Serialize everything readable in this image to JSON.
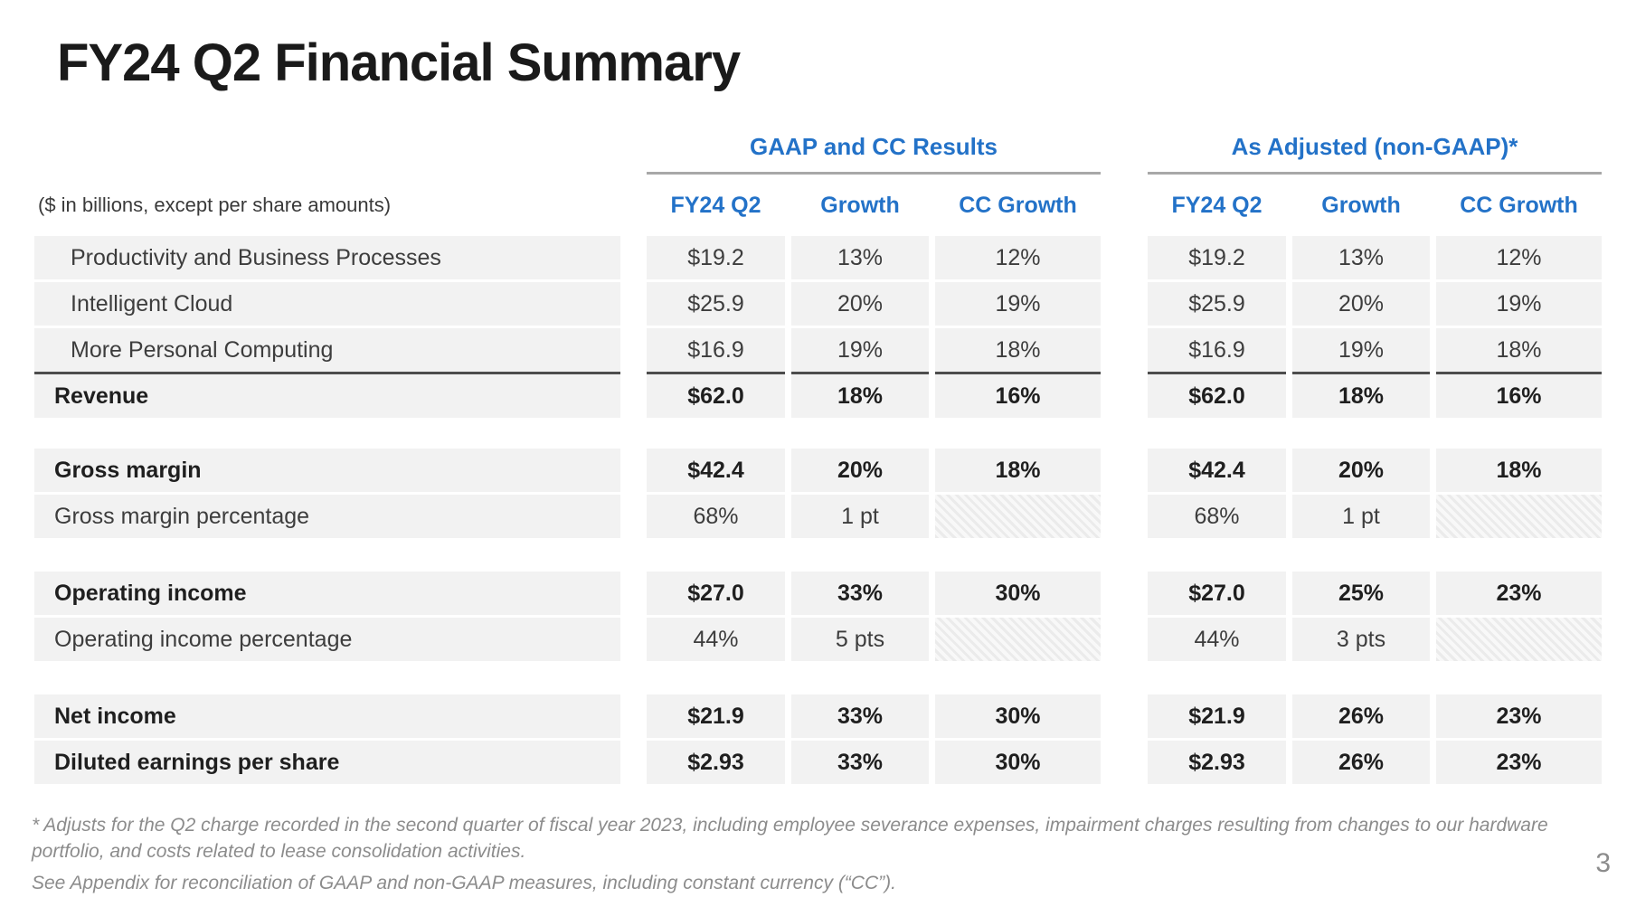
{
  "page_title": "FY24 Q2 Financial Summary",
  "units_note": "($ in billions, except per share amounts)",
  "table": {
    "sections": [
      {
        "title": "GAAP and CC Results",
        "columns": [
          "FY24 Q2",
          "Growth",
          "CC Growth"
        ]
      },
      {
        "title": "As Adjusted (non-GAAP)*",
        "columns": [
          "FY24 Q2",
          "Growth",
          "CC Growth"
        ]
      }
    ],
    "rows": [
      {
        "label": "Productivity and Business Processes",
        "indent": true,
        "bold": false,
        "gaap": [
          "$19.2",
          "13%",
          "12%"
        ],
        "non_gaap": [
          "$19.2",
          "13%",
          "12%"
        ]
      },
      {
        "label": "Intelligent Cloud",
        "indent": true,
        "bold": false,
        "gaap": [
          "$25.9",
          "20%",
          "19%"
        ],
        "non_gaap": [
          "$25.9",
          "20%",
          "19%"
        ]
      },
      {
        "label": "More Personal Computing",
        "indent": true,
        "bold": false,
        "gaap": [
          "$16.9",
          "19%",
          "18%"
        ],
        "non_gaap": [
          "$16.9",
          "19%",
          "18%"
        ]
      },
      {
        "label": "Revenue",
        "bold": true,
        "top_border": true,
        "gaap": [
          "$62.0",
          "18%",
          "16%"
        ],
        "non_gaap": [
          "$62.0",
          "18%",
          "16%"
        ]
      },
      {
        "spacer": true
      },
      {
        "label": "Gross margin",
        "bold": true,
        "gaap": [
          "$42.4",
          "20%",
          "18%"
        ],
        "non_gaap": [
          "$42.4",
          "20%",
          "18%"
        ]
      },
      {
        "label": "Gross margin percentage",
        "bold": false,
        "gaap": [
          "68%",
          "1 pt",
          null
        ],
        "non_gaap": [
          "68%",
          "1 pt",
          null
        ]
      },
      {
        "spacer": true
      },
      {
        "label": "Operating income",
        "bold": true,
        "gaap": [
          "$27.0",
          "33%",
          "30%"
        ],
        "non_gaap": [
          "$27.0",
          "25%",
          "23%"
        ]
      },
      {
        "label": "Operating income percentage",
        "bold": false,
        "gaap": [
          "44%",
          "5 pts",
          null
        ],
        "non_gaap": [
          "44%",
          "3 pts",
          null
        ]
      },
      {
        "spacer": true
      },
      {
        "label": "Net income",
        "bold": true,
        "gaap": [
          "$21.9",
          "33%",
          "30%"
        ],
        "non_gaap": [
          "$21.9",
          "26%",
          "23%"
        ]
      },
      {
        "label": "Diluted earnings per share",
        "bold": true,
        "gaap": [
          "$2.93",
          "33%",
          "30%"
        ],
        "non_gaap": [
          "$2.93",
          "26%",
          "23%"
        ]
      }
    ]
  },
  "footnotes": [
    "* Adjusts for the Q2 charge recorded in the second quarter of fiscal year 2023, including employee severance expenses, impairment charges resulting from changes to our hardware portfolio, and costs related to lease consolidation activities.",
    "See Appendix for reconciliation of GAAP and non-GAAP measures, including constant currency (“CC”)."
  ],
  "page_number": "3",
  "colors": {
    "accent_blue": "#2372C8",
    "row_band_gray": "#F2F2F2",
    "rule_gray": "#A8A8A8",
    "rule_dark": "#4D4D4D",
    "footnote_gray": "#8C8C8C"
  }
}
